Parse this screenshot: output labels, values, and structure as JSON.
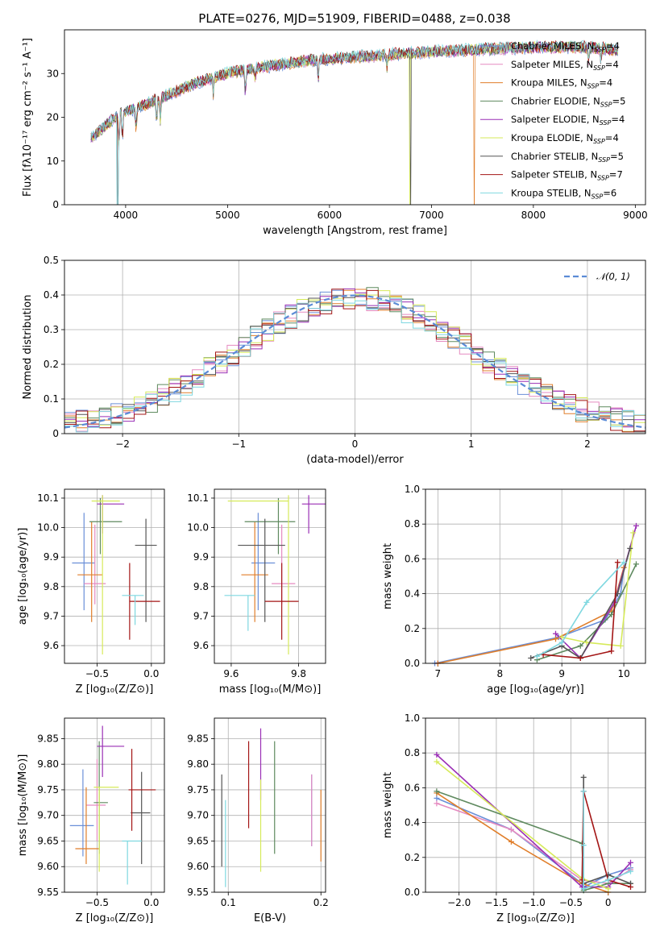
{
  "title": "PLATE=0276, MJD=51909, FIBERID=0488, z=0.038",
  "colors": [
    "#6a8fd8",
    "#e58ac0",
    "#e07e2a",
    "#5f8a5f",
    "#9a2fb5",
    "#d6ea5a",
    "#555555",
    "#a31515",
    "#7fd8e0"
  ],
  "models": [
    {
      "name": "Chabrier MILES",
      "n": "4"
    },
    {
      "name": "Salpeter MILES",
      "n": "4"
    },
    {
      "name": "Kroupa MILES",
      "n": "4"
    },
    {
      "name": "Chabrier ELODIE",
      "n": "5"
    },
    {
      "name": "Salpeter ELODIE",
      "n": "4"
    },
    {
      "name": "Kroupa ELODIE",
      "n": "4"
    },
    {
      "name": "Chabrier STELIB",
      "n": "5"
    },
    {
      "name": "Salpeter STELIB",
      "n": "7"
    },
    {
      "name": "Kroupa STELIB",
      "n": "6"
    }
  ],
  "chart_data": [
    {
      "type": "line",
      "id": "spectrum",
      "title": "PLATE=0276, MJD=51909, FIBERID=0488, z=0.038",
      "xlabel": "wavelength [Angstrom, rest frame]",
      "ylabel": "Flux [fλ10⁻¹⁷ erg cm⁻² s⁻¹ A⁻¹]",
      "xlim": [
        3400,
        9100
      ],
      "ylim": [
        0,
        40
      ],
      "xticks": [
        4000,
        5000,
        6000,
        7000,
        8000,
        9000
      ],
      "yticks": [
        0,
        10,
        20,
        30
      ],
      "legend": "top-right",
      "continuum": [
        [
          3650,
          15
        ],
        [
          3800,
          18
        ],
        [
          3950,
          21
        ],
        [
          4100,
          22
        ],
        [
          4300,
          24
        ],
        [
          4500,
          26
        ],
        [
          4700,
          28
        ],
        [
          5000,
          30
        ],
        [
          5200,
          31
        ],
        [
          5500,
          32
        ],
        [
          5800,
          33
        ],
        [
          6100,
          33.5
        ],
        [
          6400,
          34
        ],
        [
          6700,
          34.5
        ],
        [
          7000,
          35
        ],
        [
          7500,
          35.5
        ],
        [
          8000,
          36
        ],
        [
          8500,
          36
        ],
        [
          8800,
          35.5
        ]
      ],
      "dropouts": [
        {
          "x": 3920,
          "series": 8
        },
        {
          "x": 3925,
          "series": 6
        },
        {
          "x": 6790,
          "series": 5
        },
        {
          "x": 6795,
          "series": 6
        },
        {
          "x": 7420,
          "series": 2
        }
      ]
    },
    {
      "type": "area",
      "id": "residuals",
      "xlabel": "(data-model)/error",
      "ylabel": "Normed distribution",
      "xlim": [
        -2.5,
        2.5
      ],
      "ylim": [
        0,
        0.5
      ],
      "xticks": [
        -2,
        -1,
        0,
        1,
        2
      ],
      "yticks": [
        0,
        0.1,
        0.2,
        0.3,
        0.4,
        0.5
      ],
      "legend": "top-right",
      "gaussian_label": "𝒩(0, 1)",
      "bin_width": 0.1
    },
    {
      "type": "scatter",
      "id": "z_age",
      "xlabel": "Z [log₁₀(Z/Z⊙)]",
      "ylabel": "age  [log₁₀(age/yr)]",
      "xlim": [
        -0.8,
        0.12
      ],
      "ylim": [
        9.54,
        10.13
      ],
      "xticks": [
        -0.5,
        0.0
      ],
      "yticks": [
        9.6,
        9.7,
        9.8,
        9.9,
        10.0,
        10.1
      ],
      "points": [
        {
          "x": -0.62,
          "y": 9.88,
          "ex": [
            0.11,
            0.1
          ],
          "ey": [
            0.16,
            0.17
          ]
        },
        {
          "x": -0.52,
          "y": 9.81,
          "ex": [
            0.1,
            0.1
          ],
          "ey": [
            0.07,
            0.2
          ]
        },
        {
          "x": -0.55,
          "y": 9.84,
          "ex": [
            0.13,
            0.1
          ],
          "ey": [
            0.16,
            0.18
          ]
        },
        {
          "x": -0.47,
          "y": 10.02,
          "ex": [
            0.1,
            0.2
          ],
          "ey": [
            0.11,
            0.08
          ]
        },
        {
          "x": -0.45,
          "y": 10.08,
          "ex": [
            0.05,
            0.2
          ],
          "ey": [
            0.1,
            0.03
          ]
        },
        {
          "x": -0.45,
          "y": 10.09,
          "ex": [
            0.1,
            0.16
          ],
          "ey": [
            0.52,
            0.02
          ]
        },
        {
          "x": -0.05,
          "y": 9.94,
          "ex": [
            0.1,
            0.1
          ],
          "ey": [
            0.26,
            0.09
          ]
        },
        {
          "x": -0.2,
          "y": 9.75,
          "ex": [
            0.0,
            0.28
          ],
          "ey": [
            0.13,
            0.13
          ]
        },
        {
          "x": -0.15,
          "y": 9.77,
          "ex": [
            0.12,
            0.08
          ],
          "ey": [
            0.1,
            0.0
          ]
        }
      ]
    },
    {
      "type": "scatter",
      "id": "mass_age",
      "xlabel": "mass [log₁₀(M/M⊙)]",
      "ylabel": "",
      "xlim": [
        9.55,
        9.88
      ],
      "ylim": [
        9.54,
        10.13
      ],
      "xticks": [
        9.6,
        9.8
      ],
      "yticks": [
        9.6,
        9.7,
        9.8,
        9.9,
        10.0,
        10.1
      ],
      "points": [
        {
          "x": 9.68,
          "y": 9.88,
          "ex": [
            0.02,
            0.05
          ],
          "ey": [
            0.16,
            0.17
          ]
        },
        {
          "x": 9.75,
          "y": 9.81,
          "ex": [
            0.03,
            0.04
          ],
          "ey": [
            0.07,
            0.2
          ]
        },
        {
          "x": 9.67,
          "y": 9.84,
          "ex": [
            0.04,
            0.04
          ],
          "ey": [
            0.16,
            0.18
          ]
        },
        {
          "x": 9.74,
          "y": 10.02,
          "ex": [
            0.1,
            0.05
          ],
          "ey": [
            0.11,
            0.08
          ]
        },
        {
          "x": 9.83,
          "y": 10.08,
          "ex": [
            0.02,
            0.05
          ],
          "ey": [
            0.1,
            0.03
          ]
        },
        {
          "x": 9.77,
          "y": 10.09,
          "ex": [
            0.18,
            0.0
          ],
          "ey": [
            0.52,
            0.02
          ]
        },
        {
          "x": 9.7,
          "y": 9.94,
          "ex": [
            0.08,
            0.06
          ],
          "ey": [
            0.26,
            0.09
          ]
        },
        {
          "x": 9.75,
          "y": 9.75,
          "ex": [
            0.05,
            0.05
          ],
          "ey": [
            0.13,
            0.13
          ]
        },
        {
          "x": 9.65,
          "y": 9.77,
          "ex": [
            0.07,
            0.02
          ],
          "ey": [
            0.12,
            0.0
          ]
        }
      ]
    },
    {
      "type": "line",
      "id": "age_weight",
      "xlabel": "age  [log₁₀(age/yr)]",
      "ylabel": "mass weight",
      "xlim": [
        6.8,
        10.35
      ],
      "ylim": [
        0,
        1.0
      ],
      "xticks": [
        7,
        8,
        9,
        10
      ],
      "yticks": [
        0,
        0.2,
        0.4,
        0.6,
        0.8,
        1.0
      ],
      "series": [
        {
          "x": [
            6.95,
            8.95,
            9.7,
            9.95,
            10.0
          ],
          "y": [
            0.0,
            0.15,
            0.25,
            0.4,
            0.55
          ]
        },
        {
          "x": 7.0,
          "y": 0.0
        },
        {
          "x": [
            7.0,
            8.9,
            9.8,
            10.0
          ],
          "y": [
            0.0,
            0.14,
            0.3,
            0.55
          ]
        },
        {
          "x": [
            8.6,
            9.3,
            9.8,
            10.2
          ],
          "y": [
            0.02,
            0.1,
            0.28,
            0.57
          ]
        },
        {
          "x": [
            8.9,
            9.3,
            9.85,
            10.2
          ],
          "y": [
            0.17,
            0.03,
            0.35,
            0.79
          ]
        },
        {
          "x": [
            9.0,
            9.4,
            9.95,
            10.15
          ],
          "y": [
            0.15,
            0.12,
            0.1,
            0.75
          ]
        },
        {
          "x": [
            8.5,
            9.0,
            9.3,
            9.9,
            10.1
          ],
          "y": [
            0.03,
            0.1,
            0.03,
            0.4,
            0.66
          ]
        },
        {
          "x": [
            8.7,
            9.3,
            9.8,
            9.9
          ],
          "y": [
            0.05,
            0.03,
            0.07,
            0.58
          ]
        },
        {
          "x": [
            8.6,
            9.0,
            9.4,
            10.0
          ],
          "y": [
            0.04,
            0.12,
            0.35,
            0.58
          ]
        }
      ]
    },
    {
      "type": "scatter",
      "id": "z_mass",
      "xlabel": "Z [log₁₀(Z/Z⊙)]",
      "ylabel": "mass [log₁₀(M/M⊙)]",
      "xlim": [
        -0.8,
        0.12
      ],
      "ylim": [
        9.55,
        9.89
      ],
      "xticks": [
        -0.5,
        0.0
      ],
      "yticks": [
        9.55,
        9.6,
        9.65,
        9.7,
        9.75,
        9.8,
        9.85
      ],
      "points": [
        {
          "x": -0.63,
          "y": 9.68,
          "ex": [
            0.12,
            0.1
          ],
          "ey": [
            0.06,
            0.11
          ]
        },
        {
          "x": -0.5,
          "y": 9.72,
          "ex": [
            0.1,
            0.08
          ],
          "ey": [
            0.07,
            0.09
          ]
        },
        {
          "x": -0.6,
          "y": 9.635,
          "ex": [
            0.1,
            0.12
          ],
          "ey": [
            0.03,
            0.12
          ]
        },
        {
          "x": -0.48,
          "y": 9.725,
          "ex": [
            0.05,
            0.08
          ],
          "ey": [
            0.1,
            0.12
          ]
        },
        {
          "x": -0.45,
          "y": 9.835,
          "ex": [
            0.05,
            0.2
          ],
          "ey": [
            0.06,
            0.04
          ]
        },
        {
          "x": -0.48,
          "y": 9.755,
          "ex": [
            0.05,
            0.18
          ],
          "ey": [
            0.165,
            0.0
          ]
        },
        {
          "x": -0.09,
          "y": 9.705,
          "ex": [
            0.1,
            0.08
          ],
          "ey": [
            0.1,
            0.08
          ]
        },
        {
          "x": -0.18,
          "y": 9.75,
          "ex": [
            0.03,
            0.22
          ],
          "ey": [
            0.08,
            0.08
          ]
        },
        {
          "x": -0.22,
          "y": 9.65,
          "ex": [
            0.05,
            0.13
          ],
          "ey": [
            0.085,
            0.0
          ]
        }
      ]
    },
    {
      "type": "scatter",
      "id": "ebv_mass",
      "xlabel": "E(B-V)",
      "ylabel": "",
      "xlim": [
        0.085,
        0.205
      ],
      "ylim": [
        9.55,
        9.89
      ],
      "xticks": [
        0.1,
        0.2
      ],
      "yticks": [
        9.55,
        9.6,
        9.65,
        9.7,
        9.75,
        9.8,
        9.85
      ],
      "points": [
        {
          "x": 0.19,
          "y": 9.71,
          "ey": [
            0.07,
            0.07
          ]
        },
        {
          "x": 0.19,
          "y": 9.71,
          "ey": [
            0.07,
            0.07
          ]
        },
        {
          "x": 0.2,
          "y": 9.68,
          "ey": [
            0.07,
            0.07
          ]
        },
        {
          "x": 0.15,
          "y": 9.735,
          "ey": [
            0.11,
            0.11
          ]
        },
        {
          "x": 0.135,
          "y": 9.8,
          "ey": [
            0.07,
            0.07
          ]
        },
        {
          "x": 0.135,
          "y": 9.68,
          "ey": [
            0.09,
            0.09
          ]
        },
        {
          "x": 0.093,
          "y": 9.69,
          "ey": [
            0.09,
            0.09
          ]
        },
        {
          "x": 0.122,
          "y": 9.76,
          "ey": [
            0.085,
            0.085
          ]
        },
        {
          "x": 0.097,
          "y": 9.645,
          "ey": [
            0.085,
            0.085
          ]
        }
      ]
    },
    {
      "type": "line",
      "id": "z_weight",
      "xlabel": "Z [log₁₀(Z/Z⊙)]",
      "ylabel": "mass weight",
      "xlim": [
        -2.45,
        0.5
      ],
      "ylim": [
        0,
        1.0
      ],
      "xticks": [
        -2.0,
        -1.5,
        -1.0,
        -0.5,
        0.0
      ],
      "yticks": [
        0,
        0.2,
        0.4,
        0.6,
        0.8,
        1.0
      ],
      "series": [
        {
          "x": [
            -2.3,
            -1.3,
            -0.35,
            -0.33,
            0.0,
            0.3
          ],
          "y": [
            0.54,
            0.36,
            0.05,
            0.03,
            0.1,
            0.14
          ]
        },
        {
          "x": [
            -2.3,
            -1.3,
            -0.35,
            0.0,
            0.3
          ],
          "y": [
            0.51,
            0.36,
            0.07,
            0.05,
            0.13
          ]
        },
        {
          "x": [
            -2.3,
            -1.3,
            -0.35,
            0.0
          ],
          "y": [
            0.57,
            0.29,
            0.05,
            0.0
          ]
        },
        {
          "x": [
            -2.3,
            -0.35,
            -0.33,
            0.0,
            0.3
          ],
          "y": [
            0.58,
            0.28,
            0.01,
            0.05,
            0.05
          ]
        },
        {
          "x": [
            -2.3,
            -0.35,
            0.0,
            0.3
          ],
          "y": [
            0.79,
            0.03,
            0.03,
            0.17
          ]
        },
        {
          "x": [
            -2.3,
            -0.35,
            0.0
          ],
          "y": [
            0.75,
            0.08,
            0.02
          ]
        },
        {
          "x": [
            -0.33,
            -0.33,
            0.0,
            0.3
          ],
          "y": [
            0.66,
            0.05,
            0.1,
            0.05
          ]
        },
        {
          "x": [
            -0.35,
            -0.33,
            0.0,
            0.3
          ],
          "y": [
            0.07,
            0.58,
            0.07,
            0.03
          ]
        },
        {
          "x": [
            -0.33,
            -0.33,
            -0.33,
            0.0,
            0.3
          ],
          "y": [
            0.58,
            0.27,
            0.02,
            0.07,
            0.12
          ]
        }
      ]
    }
  ]
}
